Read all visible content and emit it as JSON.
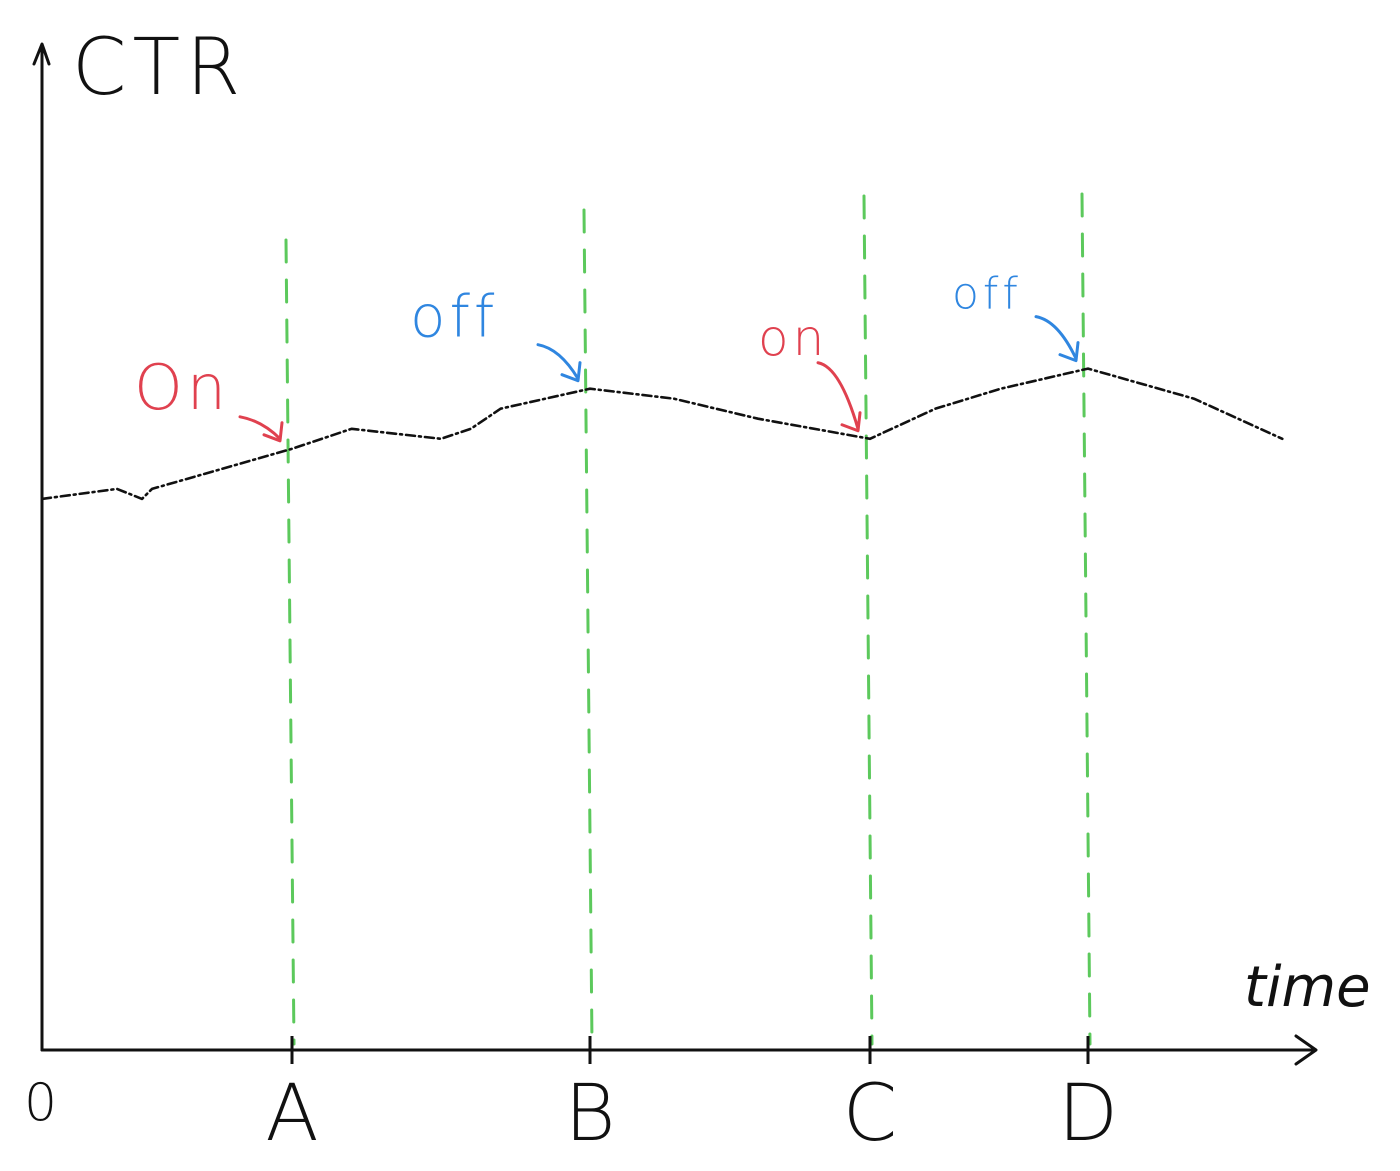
{
  "chart_data": {
    "type": "line",
    "ylabel": "CTR",
    "xlabel": "time",
    "origin_label": "0",
    "x_ticks": [
      "A",
      "B",
      "C",
      "D"
    ],
    "grid": false,
    "legend": "none",
    "colors": {
      "axis": "#111111",
      "series": "#111111",
      "markers": "#5cc95c",
      "on": "#e0414f",
      "off": "#2f86e0"
    },
    "series": [
      {
        "values": [
          {
            "x": 0.0,
            "y": 0.55
          },
          {
            "x": 0.3,
            "y": 0.56
          },
          {
            "x": 0.4,
            "y": 0.55
          },
          {
            "x": 0.44,
            "y": 0.56
          },
          {
            "x": 1.0,
            "y": 0.6
          },
          {
            "x": 1.2,
            "y": 0.62
          },
          {
            "x": 1.5,
            "y": 0.61
          },
          {
            "x": 1.6,
            "y": 0.62
          },
          {
            "x": 1.7,
            "y": 0.64
          },
          {
            "x": 2.0,
            "y": 0.66
          },
          {
            "x": 2.3,
            "y": 0.65
          },
          {
            "x": 2.6,
            "y": 0.63
          },
          {
            "x": 3.0,
            "y": 0.61
          },
          {
            "x": 3.3,
            "y": 0.64
          },
          {
            "x": 3.6,
            "y": 0.66
          },
          {
            "x": 4.0,
            "y": 0.68
          },
          {
            "x": 4.3,
            "y": 0.65
          },
          {
            "x": 4.55,
            "y": 0.61
          }
        ]
      }
    ],
    "markers": [
      {
        "tick": "A",
        "x": 1,
        "annotation": "On",
        "state": "on"
      },
      {
        "tick": "B",
        "x": 2,
        "annotation": "off",
        "state": "off"
      },
      {
        "tick": "C",
        "x": 3,
        "annotation": "on",
        "state": "on"
      },
      {
        "tick": "D",
        "x": 4,
        "annotation": "off",
        "state": "off"
      }
    ],
    "xlim": [
      0,
      4.6
    ],
    "ylim": [
      0,
      1
    ]
  }
}
